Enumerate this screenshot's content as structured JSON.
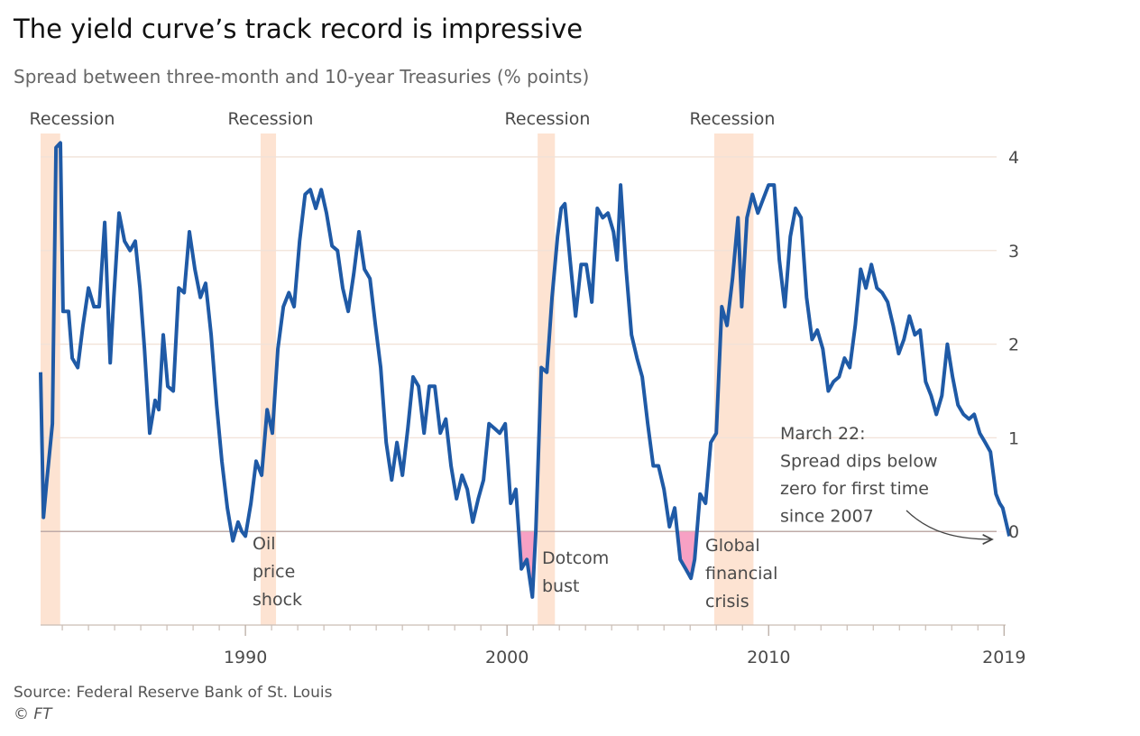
{
  "chart_data": {
    "type": "line",
    "title": "The yield curve’s track record is impressive",
    "subtitle": "Spread between three-month and 10-year Treasuries (% points)",
    "source": "Source: Federal Reserve Bank of St. Louis",
    "credit": "© FT",
    "color": "#1f5aa6",
    "negative_fill": "#f7a1c4",
    "recession_color": "#fde3d2",
    "grid": true,
    "xlim": [
      1982.17,
      2019.3
    ],
    "ylim": [
      -1,
      4.25
    ],
    "xticks": [
      1990,
      2000,
      2010,
      2019
    ],
    "xminor_ticks": [
      1983,
      1984,
      1985,
      1986,
      1987,
      1988,
      1989,
      1991,
      1992,
      1993,
      1994,
      1995,
      1996,
      1997,
      1998,
      1999,
      2001,
      2002,
      2003,
      2004,
      2005,
      2006,
      2007,
      2008,
      2009,
      2011,
      2012,
      2013,
      2014,
      2015,
      2016,
      2017,
      2018
    ],
    "yticks": [
      0,
      1,
      2,
      3,
      4
    ],
    "recessions": [
      {
        "label": "Recession",
        "start": 1981.5,
        "end": 1982.92
      },
      {
        "label": "Recession",
        "start": 1990.58,
        "end": 1991.17
      },
      {
        "label": "Recession",
        "start": 2001.17,
        "end": 2001.83
      },
      {
        "label": "Recession",
        "start": 2007.92,
        "end": 2009.42
      }
    ],
    "annotations": [
      {
        "lines": [
          "Oil",
          "price",
          "shock"
        ]
      },
      {
        "lines": [
          "Dotcom",
          "bust"
        ]
      },
      {
        "lines": [
          "Global",
          "financial",
          "crisis"
        ]
      },
      {
        "lines": [
          "March 22:",
          "Spread dips below",
          "zero for first time",
          "since 2007"
        ]
      }
    ],
    "x": [
      1982.17,
      1982.28,
      1982.41,
      1982.62,
      1982.76,
      1982.93,
      1983.03,
      1983.24,
      1983.38,
      1983.59,
      1983.79,
      1984.0,
      1984.21,
      1984.41,
      1984.62,
      1984.83,
      1984.97,
      1985.17,
      1985.38,
      1985.59,
      1985.79,
      1985.97,
      1986.14,
      1986.34,
      1986.55,
      1986.69,
      1986.86,
      1987.03,
      1987.24,
      1987.45,
      1987.66,
      1987.86,
      1988.07,
      1988.28,
      1988.48,
      1988.69,
      1988.9,
      1989.1,
      1989.31,
      1989.52,
      1989.72,
      1989.86,
      1990.0,
      1990.21,
      1990.41,
      1990.62,
      1990.83,
      1991.03,
      1991.24,
      1991.45,
      1991.66,
      1991.86,
      1992.07,
      1992.28,
      1992.48,
      1992.69,
      1992.9,
      1993.1,
      1993.31,
      1993.52,
      1993.72,
      1993.93,
      1994.14,
      1994.34,
      1994.55,
      1994.76,
      1994.97,
      1995.17,
      1995.38,
      1995.59,
      1995.79,
      1996.0,
      1996.21,
      1996.41,
      1996.62,
      1996.83,
      1997.03,
      1997.24,
      1997.45,
      1997.66,
      1997.86,
      1998.07,
      1998.28,
      1998.48,
      1998.69,
      1998.9,
      1999.1,
      1999.31,
      1999.52,
      1999.72,
      1999.93,
      2000.14,
      2000.34,
      2000.55,
      2000.76,
      2000.97,
      2001.1,
      2001.31,
      2001.52,
      2001.72,
      2001.93,
      2002.07,
      2002.21,
      2002.41,
      2002.62,
      2002.83,
      2003.03,
      2003.24,
      2003.45,
      2003.66,
      2003.86,
      2004.07,
      2004.21,
      2004.34,
      2004.55,
      2004.76,
      2004.97,
      2005.17,
      2005.38,
      2005.59,
      2005.79,
      2006.0,
      2006.21,
      2006.41,
      2006.62,
      2006.83,
      2007.03,
      2007.17,
      2007.38,
      2007.59,
      2007.79,
      2008.0,
      2008.21,
      2008.41,
      2008.62,
      2008.83,
      2008.97,
      2009.17,
      2009.38,
      2009.59,
      2009.79,
      2010.0,
      2010.21,
      2010.41,
      2010.62,
      2010.83,
      2011.03,
      2011.24,
      2011.45,
      2011.66,
      2011.86,
      2012.07,
      2012.28,
      2012.48,
      2012.69,
      2012.9,
      2013.1,
      2013.31,
      2013.52,
      2013.72,
      2013.93,
      2014.14,
      2014.34,
      2014.55,
      2014.76,
      2014.97,
      2015.17,
      2015.38,
      2015.59,
      2015.79,
      2016.0,
      2016.21,
      2016.41,
      2016.62,
      2016.83,
      2017.03,
      2017.24,
      2017.45,
      2017.66,
      2017.86,
      2018.07,
      2018.28,
      2018.48,
      2018.69,
      2018.83,
      2018.95,
      2019.2
    ],
    "values": [
      1.7,
      0.15,
      0.55,
      1.15,
      4.1,
      4.15,
      2.35,
      2.35,
      1.85,
      1.75,
      2.2,
      2.6,
      2.4,
      2.4,
      3.3,
      1.8,
      2.5,
      3.4,
      3.1,
      3.0,
      3.1,
      2.6,
      1.95,
      1.05,
      1.4,
      1.3,
      2.1,
      1.55,
      1.5,
      2.6,
      2.55,
      3.2,
      2.8,
      2.5,
      2.65,
      2.1,
      1.35,
      0.75,
      0.25,
      -0.1,
      0.1,
      0.0,
      -0.05,
      0.3,
      0.75,
      0.6,
      1.3,
      1.05,
      1.95,
      2.4,
      2.55,
      2.4,
      3.1,
      3.6,
      3.65,
      3.45,
      3.65,
      3.4,
      3.05,
      3.0,
      2.6,
      2.35,
      2.75,
      3.2,
      2.8,
      2.7,
      2.2,
      1.75,
      0.95,
      0.55,
      0.95,
      0.6,
      1.1,
      1.65,
      1.55,
      1.05,
      1.55,
      1.55,
      1.05,
      1.2,
      0.7,
      0.35,
      0.6,
      0.45,
      0.1,
      0.35,
      0.55,
      1.15,
      1.1,
      1.05,
      1.15,
      0.3,
      0.45,
      -0.4,
      -0.3,
      -0.7,
      0.0,
      1.75,
      1.7,
      2.5,
      3.15,
      3.45,
      3.5,
      2.9,
      2.3,
      2.85,
      2.85,
      2.45,
      3.45,
      3.35,
      3.4,
      3.2,
      2.9,
      3.7,
      2.8,
      2.1,
      1.85,
      1.65,
      1.15,
      0.7,
      0.7,
      0.45,
      0.05,
      0.25,
      -0.3,
      -0.4,
      -0.5,
      -0.3,
      0.4,
      0.3,
      0.95,
      1.05,
      2.4,
      2.2,
      2.7,
      3.35,
      2.4,
      3.35,
      3.6,
      3.4,
      3.55,
      3.7,
      3.7,
      2.9,
      2.4,
      3.15,
      3.45,
      3.35,
      2.5,
      2.05,
      2.15,
      1.95,
      1.5,
      1.6,
      1.65,
      1.85,
      1.75,
      2.2,
      2.8,
      2.6,
      2.85,
      2.6,
      2.55,
      2.45,
      2.2,
      1.9,
      2.05,
      2.3,
      2.1,
      2.15,
      1.6,
      1.45,
      1.25,
      1.45,
      2.0,
      1.65,
      1.35,
      1.25,
      1.2,
      1.25,
      1.05,
      0.95,
      0.85,
      0.4,
      0.3,
      0.25,
      -0.05
    ]
  }
}
